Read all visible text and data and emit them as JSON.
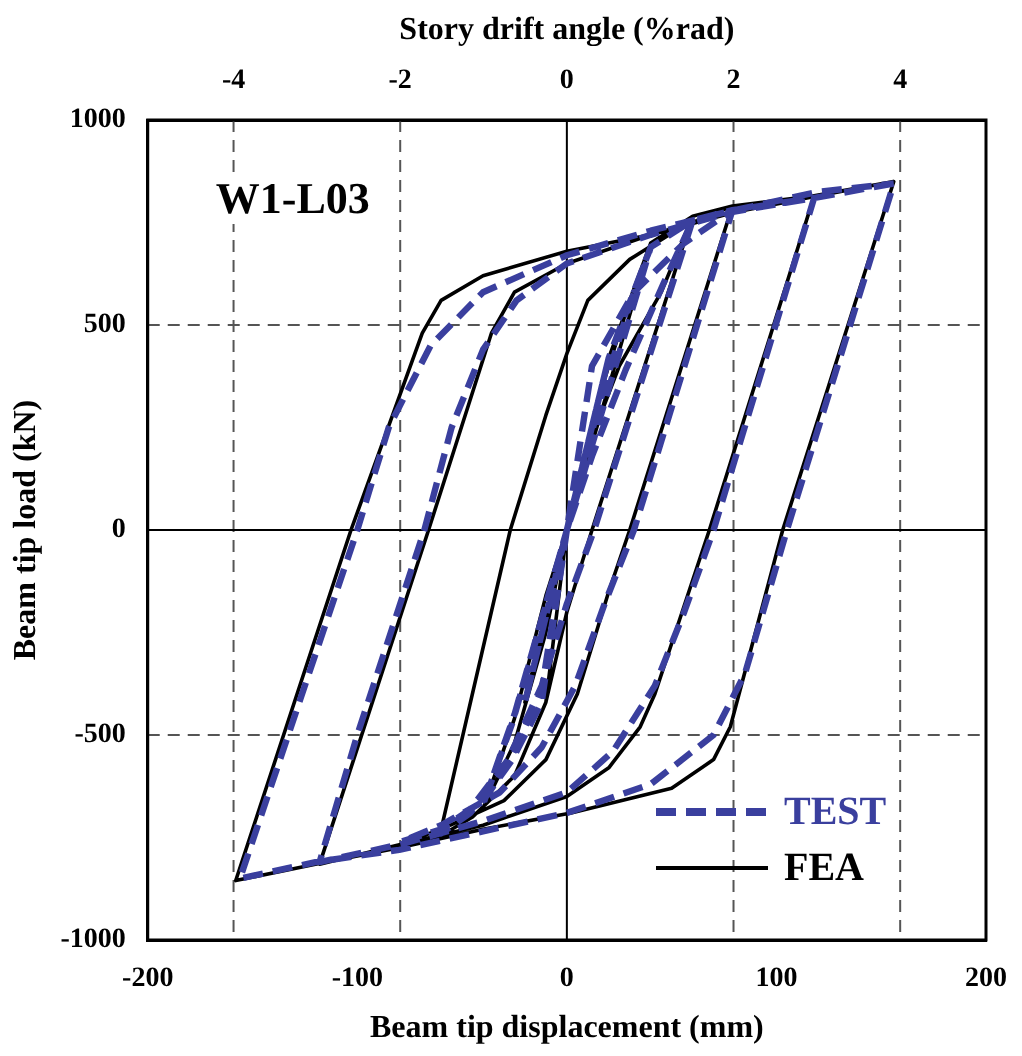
{
  "chart_data": {
    "type": "line",
    "xlabel": "Beam tip displacement (mm)",
    "ylabel": "Beam tip load (kN)",
    "x2label": "Story drift angle (%rad)",
    "xlim": [
      -200,
      200
    ],
    "xticks": [
      -200,
      -100,
      0,
      100,
      200
    ],
    "x2lim": [
      -5.03,
      5.03
    ],
    "x2ticks": [
      -4,
      -2,
      0,
      2,
      4
    ],
    "ylim": [
      -1000,
      1000
    ],
    "yticks": [
      -1000,
      -500,
      0,
      500,
      1000
    ],
    "grid": true,
    "legend": "bottom right",
    "marker": "none",
    "annotations": [
      "W1-L03"
    ],
    "series": [
      {
        "name": "TEST",
        "color": "#3a3f9e",
        "line_style": "dashed",
        "x": [
          0,
          20,
          0,
          -20,
          0,
          20,
          40,
          0,
          -12,
          -26,
          -40,
          -25,
          -10,
          0,
          15,
          30,
          40,
          60,
          13,
          0,
          -12,
          -28,
          -46,
          -60,
          -46,
          -28,
          -12,
          0,
          12,
          28,
          46,
          60,
          79,
          32,
          18,
          4,
          -12,
          -32,
          -60,
          -79,
          -60,
          -40,
          -26,
          -12,
          0,
          12,
          32,
          56,
          79,
          118,
          70,
          56,
          42,
          22,
          0,
          -40,
          -78,
          -118,
          -100,
          -68,
          -55,
          -40,
          -24,
          0,
          40,
          78,
          118,
          156,
          105,
          85,
          70,
          40,
          0,
          -40,
          -80,
          -120,
          -156,
          -100,
          -85,
          -65,
          -40,
          0,
          40,
          80,
          120,
          156
        ],
        "values": [
          0,
          420,
          0,
          -420,
          0,
          420,
          690,
          0,
          -220,
          -470,
          -670,
          -450,
          -180,
          0,
          300,
          550,
          690,
          755,
          0,
          -180,
          -380,
          -560,
          -680,
          -740,
          -690,
          -570,
          -390,
          0,
          180,
          390,
          600,
          755,
          780,
          0,
          -180,
          -380,
          -530,
          -640,
          -720,
          -760,
          -730,
          -660,
          -560,
          -420,
          0,
          400,
          580,
          700,
          780,
          810,
          0,
          -200,
          -380,
          -540,
          -640,
          -710,
          -765,
          -810,
          -500,
          0,
          250,
          440,
          560,
          650,
          720,
          775,
          810,
          845,
          0,
          -350,
          -500,
          -620,
          -690,
          -735,
          -780,
          -810,
          -850,
          0,
          250,
          450,
          580,
          670,
          730,
          780,
          825,
          845
        ]
      },
      {
        "name": "FEA",
        "color": "#000000",
        "line_style": "solid",
        "x": [
          0,
          20,
          0,
          -20,
          0,
          20,
          40,
          0,
          -10,
          -25,
          -40,
          -25,
          -10,
          0,
          15,
          30,
          40,
          60,
          12,
          0,
          -10,
          -25,
          -45,
          -60,
          -45,
          -25,
          -10,
          0,
          10,
          25,
          45,
          60,
          79,
          30,
          20,
          5,
          -10,
          -30,
          -60,
          -79,
          -60,
          -27,
          -10,
          0,
          10,
          30,
          55,
          79,
          118,
          68,
          55,
          42,
          35,
          20,
          0,
          -40,
          -78,
          -118,
          -66,
          -36,
          -25,
          0,
          40,
          78,
          118,
          156,
          103,
          78,
          70,
          50,
          2,
          -40,
          -80,
          -120,
          -158,
          -103,
          -69,
          -60,
          -40,
          0,
          40,
          80,
          120,
          156
        ],
        "values": [
          0,
          420,
          0,
          -420,
          0,
          420,
          700,
          0,
          -250,
          -520,
          -680,
          -460,
          -160,
          0,
          320,
          560,
          700,
          765,
          0,
          -200,
          -420,
          -600,
          -700,
          -745,
          -700,
          -600,
          -420,
          0,
          200,
          400,
          580,
          765,
          790,
          0,
          -150,
          -400,
          -560,
          -660,
          -730,
          -765,
          -730,
          0,
          280,
          430,
          560,
          660,
          740,
          790,
          815,
          0,
          -200,
          -400,
          -480,
          -580,
          -650,
          -720,
          -765,
          -815,
          0,
          480,
          580,
          650,
          720,
          775,
          815,
          850,
          0,
          -480,
          -560,
          -630,
          -690,
          -730,
          -775,
          -815,
          -855,
          0,
          480,
          560,
          620,
          680,
          720,
          775,
          815,
          850
        ]
      }
    ]
  }
}
